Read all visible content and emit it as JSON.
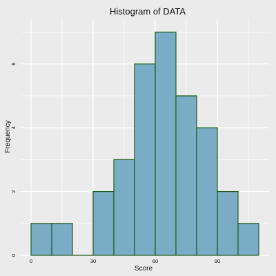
{
  "chart_data": {
    "type": "bar",
    "title": "Histogram of DATA",
    "xlabel": "Score",
    "ylabel": "Frequency",
    "bins": [
      {
        "start": 0,
        "end": 10,
        "count": 1
      },
      {
        "start": 10,
        "end": 20,
        "count": 1
      },
      {
        "start": 20,
        "end": 30,
        "count": 0
      },
      {
        "start": 30,
        "end": 40,
        "count": 2
      },
      {
        "start": 40,
        "end": 50,
        "count": 3
      },
      {
        "start": 50,
        "end": 60,
        "count": 6
      },
      {
        "start": 60,
        "end": 70,
        "count": 7
      },
      {
        "start": 70,
        "end": 80,
        "count": 5
      },
      {
        "start": 80,
        "end": 90,
        "count": 4
      },
      {
        "start": 90,
        "end": 100,
        "count": 2
      },
      {
        "start": 100,
        "end": 110,
        "count": 1
      }
    ],
    "xticks": [
      0,
      30,
      60,
      90
    ],
    "yticks": [
      0,
      2,
      4,
      6
    ],
    "xlim": [
      -5,
      115
    ],
    "ylim": [
      0,
      7.4
    ],
    "grid": true,
    "colors": {
      "background": "#ebebeb",
      "panel": "#ebebeb",
      "grid": "#ffffff",
      "bar_fill": "#7bacc5",
      "bar_edge": "#1f5a1f"
    }
  }
}
